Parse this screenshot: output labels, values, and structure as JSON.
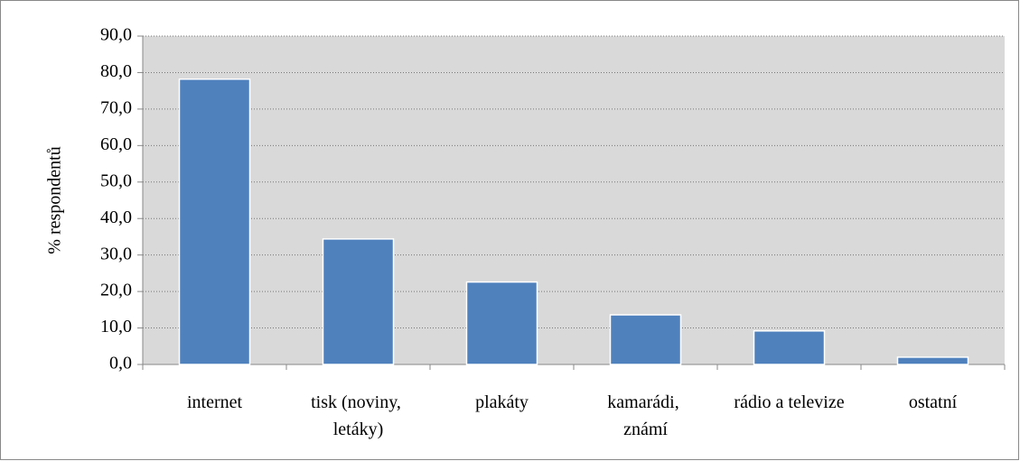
{
  "chart_data": {
    "type": "bar",
    "categories": [
      "internet",
      "tisk (noviny, letáky)",
      "plakáty",
      "kamarádi, známí",
      "rádio a televize",
      "ostatní"
    ],
    "values": [
      78.2,
      34.4,
      22.6,
      13.6,
      9.2,
      2.0
    ],
    "color": "#4f81bd",
    "y_label": "% respondentů",
    "ylim": [
      0,
      90
    ],
    "yticks": [
      {
        "value": 0,
        "label": "0,0"
      },
      {
        "value": 10,
        "label": "10,0"
      },
      {
        "value": 20,
        "label": "20,0"
      },
      {
        "value": 30,
        "label": "30,0"
      },
      {
        "value": 40,
        "label": "40,0"
      },
      {
        "value": 50,
        "label": "50,0"
      },
      {
        "value": 60,
        "label": "60,0"
      },
      {
        "value": 70,
        "label": "70,0"
      },
      {
        "value": 80,
        "label": "80,0"
      },
      {
        "value": 90,
        "label": "90,0"
      }
    ],
    "grid": true
  }
}
